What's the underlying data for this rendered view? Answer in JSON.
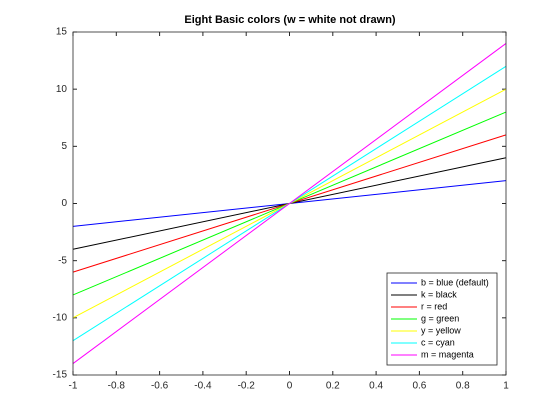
{
  "chart_data": {
    "type": "line",
    "title": "Eight Basic colors (w = white not drawn)",
    "x": [
      -1,
      1
    ],
    "series": [
      {
        "name": "b = blue (default)",
        "color": "#0000ff",
        "values": [
          -2,
          2
        ]
      },
      {
        "name": "k = black",
        "color": "#000000",
        "values": [
          -4,
          4
        ]
      },
      {
        "name": "r = red",
        "color": "#ff0000",
        "values": [
          -6,
          6
        ]
      },
      {
        "name": "g = green",
        "color": "#00ff00",
        "values": [
          -8,
          8
        ]
      },
      {
        "name": "y = yellow",
        "color": "#ffff00",
        "values": [
          -10,
          10
        ]
      },
      {
        "name": "c = cyan",
        "color": "#00ffff",
        "values": [
          -12,
          12
        ]
      },
      {
        "name": "m = magenta",
        "color": "#ff00ff",
        "values": [
          -14,
          14
        ]
      }
    ],
    "xlim": [
      -1,
      1
    ],
    "xticks": [
      -1,
      -0.8,
      -0.6,
      -0.4,
      -0.2,
      0,
      0.2,
      0.4,
      0.6,
      0.8,
      1
    ],
    "ylim": [
      -15,
      15
    ],
    "yticks": [
      -15,
      -10,
      -5,
      0,
      5,
      10,
      15
    ],
    "legend": "southeast"
  }
}
